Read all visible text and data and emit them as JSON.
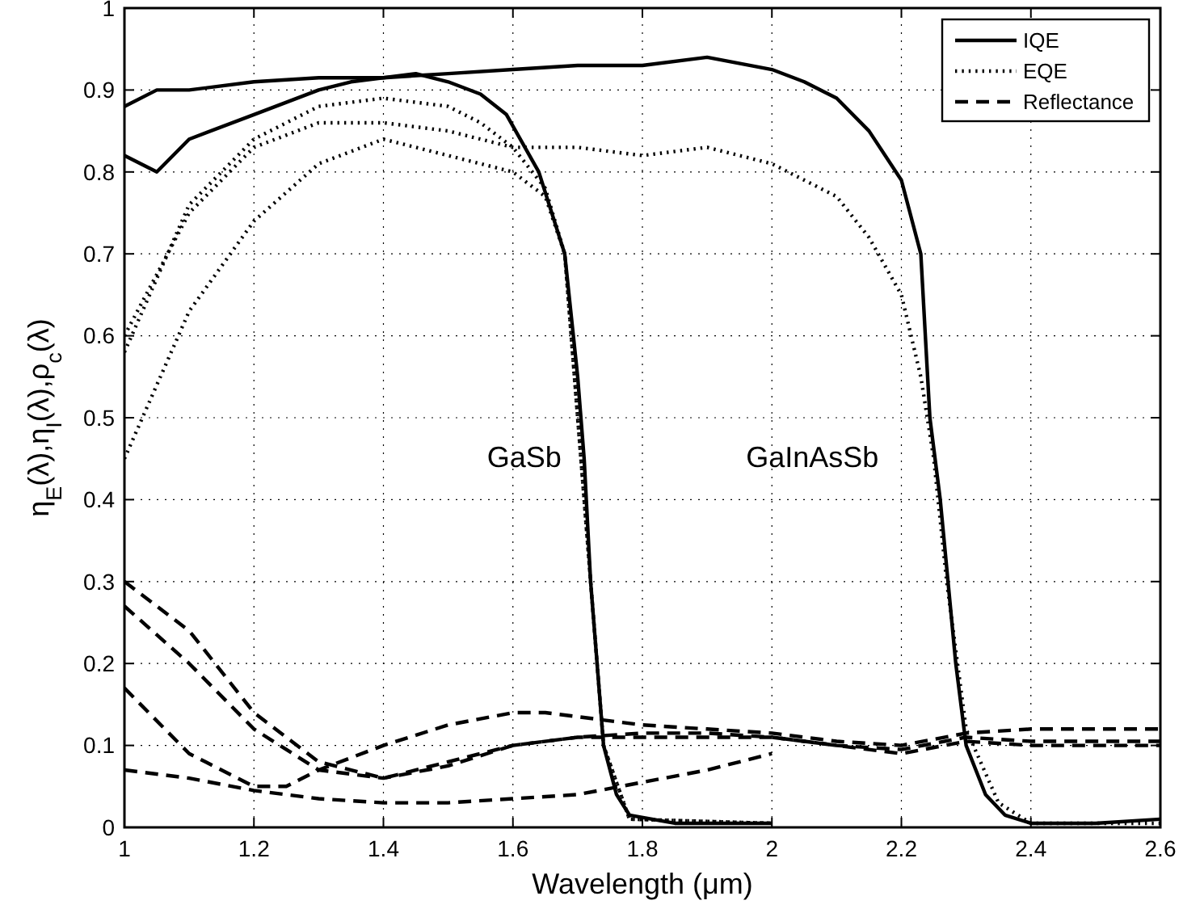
{
  "chart_data": {
    "type": "line",
    "xlabel": "Wavelength (μm)",
    "ylabel": "η$_{E}$(λ),η$_{I}$(λ),ρ$_{c}$(λ)",
    "xlim": [
      1,
      2.6
    ],
    "ylim": [
      0,
      1
    ],
    "xticks": [
      1,
      1.2,
      1.4,
      1.6,
      1.8,
      2,
      2.2,
      2.4,
      2.6
    ],
    "yticks": [
      0,
      0.1,
      0.2,
      0.3,
      0.4,
      0.5,
      0.6,
      0.7,
      0.8,
      0.9,
      1
    ],
    "grid": true,
    "legend": "top right",
    "marker": "none",
    "annotations": [
      "GaSb",
      "GaInAsSb"
    ],
    "series": [
      {
        "name": "IQE",
        "color": "#000000",
        "line_style": "solid",
        "x": [
          1,
          1.05,
          1.1,
          1.2,
          1.3,
          1.35,
          1.45,
          1.5,
          1.55,
          1.59,
          1.64,
          1.68,
          1.7,
          1.71,
          1.72,
          1.74,
          1.76,
          1.78,
          1.85,
          2
        ],
        "values": [
          0.82,
          0.8,
          0.84,
          0.87,
          0.9,
          0.91,
          0.92,
          0.91,
          0.895,
          0.87,
          0.8,
          0.7,
          0.55,
          0.45,
          0.3,
          0.1,
          0.04,
          0.015,
          0.005,
          0.005
        ]
      },
      {
        "color": "#000000",
        "line_style": "solid",
        "x": [
          1,
          1.05,
          1.1,
          1.2,
          1.3,
          1.4,
          1.5,
          1.6,
          1.7,
          1.8,
          1.9,
          2,
          2.05,
          2.1,
          2.15,
          2.2,
          2.23,
          2.244,
          2.26,
          2.284,
          2.3,
          2.33,
          2.36,
          2.4,
          2.5,
          2.6
        ],
        "values": [
          0.88,
          0.9,
          0.9,
          0.91,
          0.915,
          0.915,
          0.92,
          0.925,
          0.93,
          0.93,
          0.94,
          0.925,
          0.91,
          0.89,
          0.85,
          0.79,
          0.7,
          0.5,
          0.4,
          0.2,
          0.1,
          0.04,
          0.015,
          0.005,
          0.005,
          0.01
        ]
      },
      {
        "name": "EQE",
        "color": "#000000",
        "line_style": "dotted",
        "x": [
          1,
          1.1,
          1.2,
          1.3,
          1.4,
          1.5,
          1.55,
          1.6,
          1.65,
          1.68,
          1.7,
          1.72,
          1.74,
          1.78,
          2
        ],
        "values": [
          0.58,
          0.76,
          0.84,
          0.88,
          0.89,
          0.88,
          0.86,
          0.83,
          0.78,
          0.7,
          0.5,
          0.3,
          0.1,
          0.01,
          0.005
        ]
      },
      {
        "color": "#000000",
        "line_style": "dotted",
        "x": [
          1,
          1.1,
          1.2,
          1.3,
          1.4,
          1.5,
          1.6,
          1.65,
          1.68,
          1.7,
          1.72,
          1.74,
          1.78,
          2
        ],
        "values": [
          0.45,
          0.63,
          0.74,
          0.81,
          0.84,
          0.82,
          0.8,
          0.77,
          0.7,
          0.5,
          0.3,
          0.1,
          0.01,
          0.005
        ]
      },
      {
        "color": "#000000",
        "line_style": "dotted",
        "x": [
          1,
          1.1,
          1.2,
          1.3,
          1.4,
          1.5,
          1.6,
          1.7,
          1.8,
          1.9,
          2,
          2.1,
          2.15,
          2.2,
          2.23,
          2.25,
          2.27,
          2.3,
          2.35,
          2.4,
          2.6
        ],
        "values": [
          0.6,
          0.75,
          0.83,
          0.86,
          0.86,
          0.85,
          0.83,
          0.83,
          0.82,
          0.83,
          0.81,
          0.77,
          0.72,
          0.65,
          0.55,
          0.45,
          0.3,
          0.12,
          0.03,
          0.005,
          0.005
        ]
      },
      {
        "name": "Reflectance",
        "color": "#000000",
        "line_style": "dashed",
        "x": [
          1,
          1.1,
          1.2,
          1.3,
          1.4,
          1.5,
          1.6,
          1.7,
          1.8,
          1.9,
          2
        ],
        "values": [
          0.07,
          0.06,
          0.045,
          0.035,
          0.03,
          0.03,
          0.035,
          0.04,
          0.055,
          0.07,
          0.09
        ]
      },
      {
        "color": "#000000",
        "line_style": "dashed",
        "x": [
          1,
          1.1,
          1.2,
          1.25,
          1.3,
          1.4,
          1.5,
          1.6,
          1.65,
          1.7,
          1.8,
          1.9,
          2,
          2.1,
          2.2,
          2.3,
          2.4,
          2.5,
          2.6
        ],
        "values": [
          0.17,
          0.09,
          0.05,
          0.05,
          0.07,
          0.1,
          0.125,
          0.14,
          0.14,
          0.135,
          0.125,
          0.12,
          0.115,
          0.105,
          0.1,
          0.115,
          0.12,
          0.12,
          0.12
        ]
      },
      {
        "color": "#000000",
        "line_style": "dashed",
        "x": [
          1,
          1.1,
          1.2,
          1.3,
          1.4,
          1.5,
          1.6,
          1.7,
          1.8,
          1.9,
          2,
          2.1,
          2.2,
          2.3,
          2.4,
          2.5,
          2.6
        ],
        "values": [
          0.3,
          0.24,
          0.14,
          0.08,
          0.06,
          0.08,
          0.1,
          0.11,
          0.11,
          0.11,
          0.11,
          0.1,
          0.09,
          0.105,
          0.1,
          0.1,
          0.1
        ]
      },
      {
        "color": "#000000",
        "line_style": "dashed",
        "x": [
          1,
          1.1,
          1.2,
          1.3,
          1.4,
          1.5,
          1.6,
          1.7,
          1.8,
          1.9,
          2,
          2.1,
          2.2,
          2.3,
          2.4,
          2.5,
          2.6
        ],
        "values": [
          0.27,
          0.2,
          0.12,
          0.07,
          0.06,
          0.075,
          0.1,
          0.11,
          0.115,
          0.115,
          0.11,
          0.1,
          0.095,
          0.11,
          0.105,
          0.105,
          0.105
        ]
      }
    ]
  }
}
